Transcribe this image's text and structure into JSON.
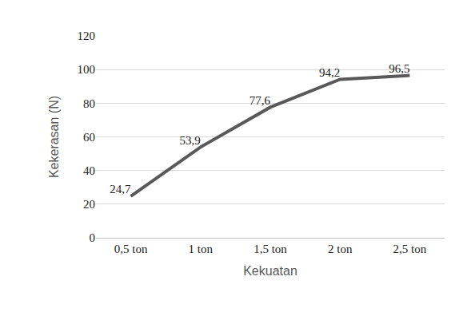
{
  "chart_data": {
    "type": "line",
    "x_label": "Kekuatan",
    "y_label": "Kekerasan (N)",
    "categories": [
      "0,5 ton",
      "1 ton",
      "1,5 ton",
      "2 ton",
      "2,5 ton"
    ],
    "values": [
      24.7,
      53.9,
      77.6,
      94.2,
      96.5
    ],
    "value_labels": [
      "24,7",
      "53,9",
      "77,6",
      "94,2",
      "96,5"
    ],
    "color": "#595959",
    "ylim": [
      0,
      120
    ],
    "yticks": [
      0,
      20,
      40,
      60,
      80,
      100,
      120
    ],
    "grid": true,
    "data_labels": true
  }
}
